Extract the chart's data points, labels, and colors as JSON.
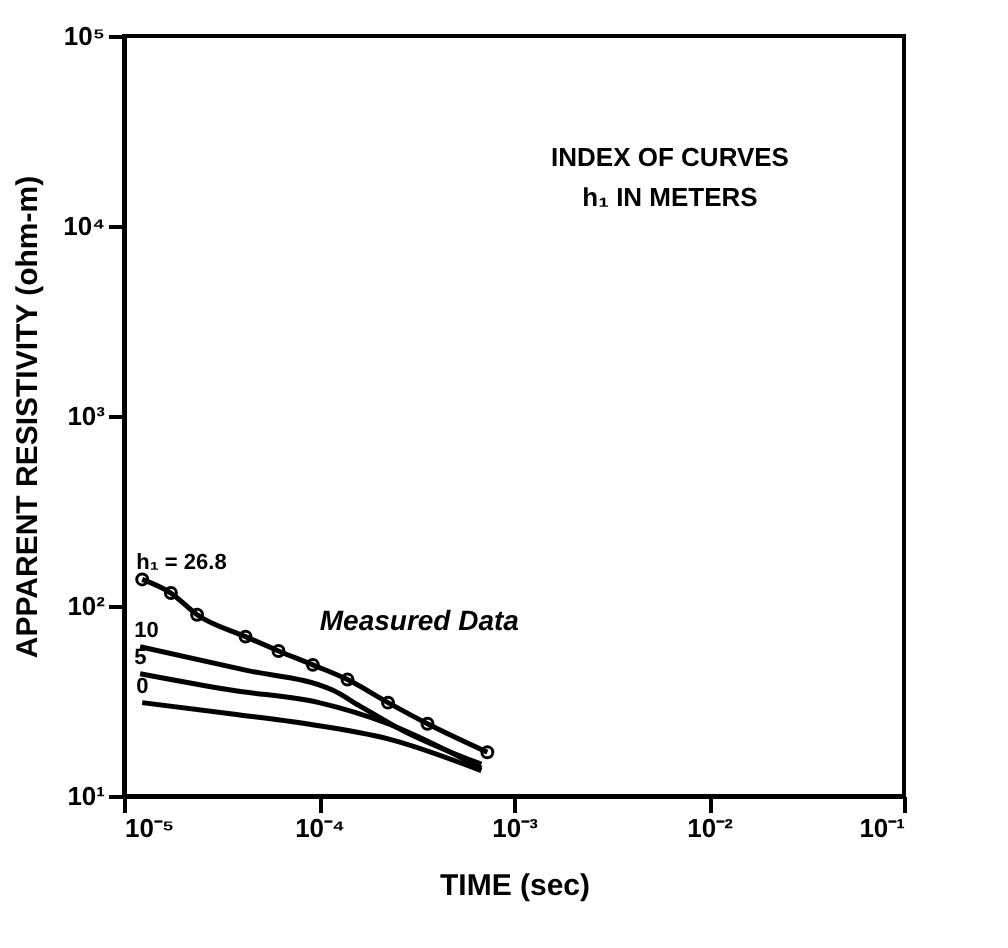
{
  "chart_data": {
    "type": "line",
    "xlabel": "TIME (sec)",
    "ylabel": "APPARENT RESISTIVITY (ohm-m)",
    "log": "xy",
    "xlim": [
      1e-05,
      0.1
    ],
    "ylim": [
      10,
      100000
    ],
    "xticks": [
      {
        "value": 1e-05,
        "label": "10⁻⁵"
      },
      {
        "value": 0.0001,
        "label": "10⁻⁴"
      },
      {
        "value": 0.001,
        "label": "10⁻³"
      },
      {
        "value": 0.01,
        "label": "10⁻²"
      },
      {
        "value": 0.1,
        "label": "10⁻¹"
      }
    ],
    "yticks": [
      {
        "value": 10,
        "label": "10¹"
      },
      {
        "value": 100,
        "label": "10²"
      },
      {
        "value": 1000,
        "label": "10³"
      },
      {
        "value": 10000,
        "label": "10⁴"
      },
      {
        "value": 100000,
        "label": "10⁵"
      }
    ],
    "grid": false,
    "series": [
      {
        "name": "h₁ = 26.8",
        "color": "#000000",
        "x": [
          1.24e-05,
          1.74e-05,
          2.37e-05,
          4.2e-05,
          6.2e-05,
          9.3e-05,
          0.00014,
          0.000226,
          0.00036,
          0.00073
        ],
        "values": [
          138,
          117,
          90,
          69,
          58,
          49,
          41,
          31,
          24,
          17
        ]
      },
      {
        "name": "10",
        "color": "#000000",
        "x": [
          1.21e-05,
          4.2e-05,
          0.000118,
          0.00016,
          0.00026,
          0.00068
        ],
        "values": [
          61,
          46,
          36,
          30,
          22.5,
          14.7
        ]
      },
      {
        "name": "5",
        "color": "#000000",
        "x": [
          1.21e-05,
          3.6e-05,
          0.0001,
          0.000226,
          0.00068
        ],
        "values": [
          44,
          36,
          31,
          24,
          14
        ]
      },
      {
        "name": "0",
        "color": "#000000",
        "x": [
          1.24e-05,
          3.6e-05,
          8.6e-05,
          0.000226,
          0.00068
        ],
        "values": [
          31,
          27,
          24,
          20,
          13.6
        ]
      },
      {
        "type": "scatter",
        "marker": "circle",
        "color": "#000000",
        "x": [
          1.24e-05,
          1.74e-05,
          2.37e-05,
          4.2e-05,
          6.2e-05,
          9.3e-05,
          0.00014,
          0.000226,
          0.00036,
          0.00073
        ],
        "values": [
          138,
          117,
          90,
          69,
          58,
          49,
          41,
          31,
          24,
          17
        ]
      }
    ],
    "annotations": [
      "INDEX OF CURVES",
      "h₁ IN METERS",
      {
        "text": "Measured Data",
        "x": 6e-05,
        "y": 60
      }
    ]
  }
}
